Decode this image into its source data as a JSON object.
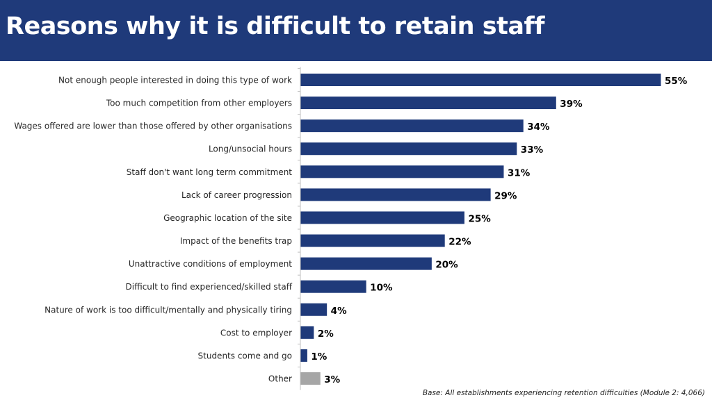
{
  "title": "Reasons why it is difficult to retain staff",
  "base_note": "Base: All establishments experiencing retention difficulties (Module 2: 4,066)",
  "colors": {
    "header_bg": "#1f3a7a",
    "bar": "#1f3a7a",
    "bar_other": "#a6a6a6",
    "axis": "#bfbfbf",
    "label_text": "#262626",
    "value_text": "#000000"
  },
  "chart_data": {
    "type": "bar",
    "orientation": "horizontal",
    "title": "Reasons why it is difficult to retain staff",
    "xlabel": "",
    "ylabel": "",
    "xlim": [
      0,
      55
    ],
    "grid": false,
    "legend": "none",
    "categories": [
      "Not enough people interested in doing this type of work",
      "Too much competition from other employers",
      "Wages offered are lower than those offered by other organisations",
      "Long/unsocial hours",
      "Staff don't want long term commitment",
      "Lack of career progression",
      "Geographic location of the site",
      "Impact of the benefits trap",
      "Unattractive conditions of employment",
      "Difficult to find experienced/skilled staff",
      "Nature of work is too difficult/mentally and physically tiring",
      "Cost to employer",
      "Students come and go",
      "Other"
    ],
    "values": [
      55,
      39,
      34,
      33,
      31,
      29,
      25,
      22,
      20,
      10,
      4,
      2,
      1,
      3
    ],
    "value_labels": [
      "55%",
      "39%",
      "34%",
      "33%",
      "31%",
      "29%",
      "25%",
      "22%",
      "20%",
      "10%",
      "4%",
      "2%",
      "1%",
      "3%"
    ],
    "highlight": [
      "Other"
    ]
  }
}
